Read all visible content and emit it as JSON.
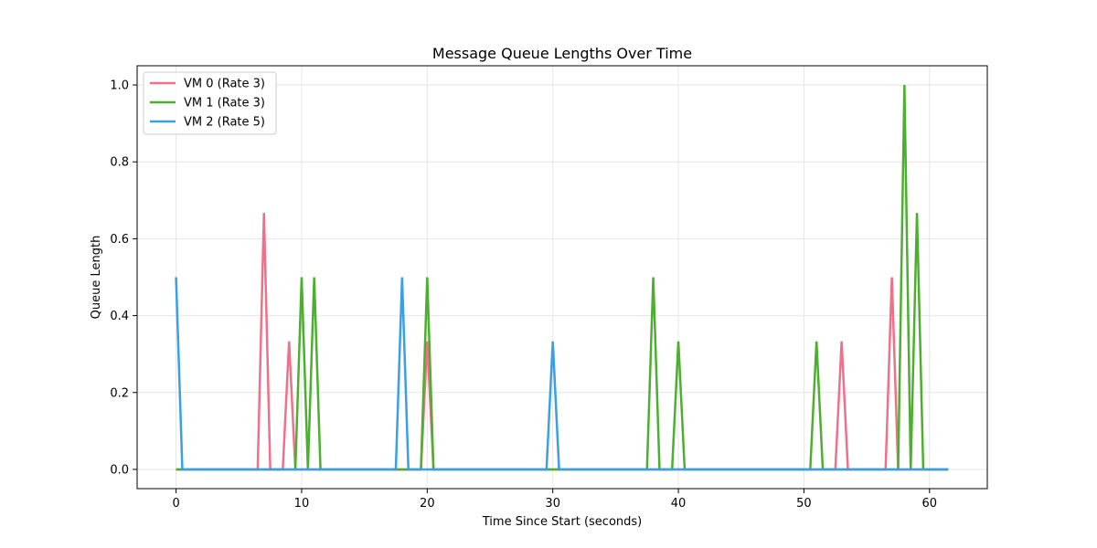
{
  "chart_data": {
    "type": "line",
    "title": "Message Queue Lengths Over Time",
    "xlabel": "Time Since Start (seconds)",
    "ylabel": "Queue Length",
    "xlim": [
      -3.1,
      64.6
    ],
    "ylim": [
      -0.05,
      1.05
    ],
    "xticks": [
      0,
      10,
      20,
      30,
      40,
      50,
      60
    ],
    "yticks": [
      0.0,
      0.2,
      0.4,
      0.6,
      0.8,
      1.0
    ],
    "ytick_labels": [
      "0.0",
      "0.2",
      "0.4",
      "0.6",
      "0.8",
      "1.0"
    ],
    "grid": true,
    "legend_position": "top-left",
    "series": [
      {
        "name": "VM 0 (Rate 3)",
        "color": "#f0708a",
        "points": [
          [
            0,
            0
          ],
          [
            6.5,
            0
          ],
          [
            7,
            0.667
          ],
          [
            7.5,
            0
          ],
          [
            8.5,
            0
          ],
          [
            9,
            0.333
          ],
          [
            9.5,
            0
          ],
          [
            19.5,
            0
          ],
          [
            20,
            0.333
          ],
          [
            20.5,
            0
          ],
          [
            52.5,
            0
          ],
          [
            53,
            0.333
          ],
          [
            53.5,
            0
          ],
          [
            56.5,
            0
          ],
          [
            57,
            0.5
          ],
          [
            57.5,
            0
          ],
          [
            61.5,
            0
          ]
        ]
      },
      {
        "name": "VM 1 (Rate 3)",
        "color": "#4daf2f",
        "points": [
          [
            0,
            0
          ],
          [
            9.5,
            0
          ],
          [
            10,
            0.5
          ],
          [
            10.5,
            0
          ],
          [
            11,
            0.5
          ],
          [
            11.5,
            0
          ],
          [
            19.5,
            0
          ],
          [
            20,
            0.5
          ],
          [
            20.5,
            0
          ],
          [
            37.5,
            0
          ],
          [
            38,
            0.5
          ],
          [
            38.5,
            0
          ],
          [
            39.5,
            0
          ],
          [
            40,
            0.333
          ],
          [
            40.5,
            0
          ],
          [
            50.5,
            0
          ],
          [
            51,
            0.333
          ],
          [
            51.5,
            0
          ],
          [
            57.5,
            0
          ],
          [
            58,
            1.0
          ],
          [
            58.5,
            0
          ],
          [
            59,
            0.667
          ],
          [
            59.5,
            0
          ],
          [
            61.5,
            0
          ]
        ]
      },
      {
        "name": "VM 2 (Rate 5)",
        "color": "#3aa0e6",
        "points": [
          [
            0,
            0.5
          ],
          [
            0.5,
            0
          ],
          [
            17.5,
            0
          ],
          [
            18,
            0.5
          ],
          [
            18.5,
            0
          ],
          [
            29.5,
            0
          ],
          [
            30,
            0.333
          ],
          [
            30.5,
            0
          ],
          [
            61.5,
            0
          ]
        ]
      }
    ]
  }
}
